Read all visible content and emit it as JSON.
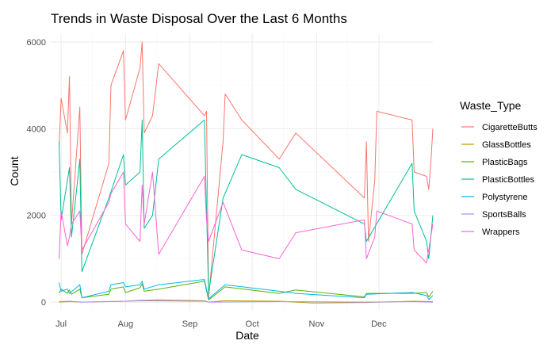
{
  "chart_data": {
    "type": "line",
    "title": "Trends in Waste Disposal Over the Last 6 Months",
    "xlabel": "Date",
    "ylabel": "Count",
    "xlim": [
      "2024-06-26",
      "2024-12-27"
    ],
    "ylim": [
      -200,
      6200
    ],
    "x_ticks": [
      {
        "label": "Jul",
        "date": "2024-07-01"
      },
      {
        "label": "Aug",
        "date": "2024-08-01"
      },
      {
        "label": "Sep",
        "date": "2024-09-01"
      },
      {
        "label": "Oct",
        "date": "2024-10-01"
      },
      {
        "label": "Nov",
        "date": "2024-11-01"
      },
      {
        "label": "Dec",
        "date": "2024-12-01"
      }
    ],
    "y_ticks": [
      0,
      2000,
      4000,
      6000
    ],
    "grid": true,
    "legend": {
      "title": "Waste_Type",
      "position": "right"
    },
    "series": [
      {
        "name": "CigaretteButts",
        "color": "#F8766D",
        "points": [
          [
            "2024-06-30",
            3600
          ],
          [
            "2024-07-01",
            4700
          ],
          [
            "2024-07-04",
            3900
          ],
          [
            "2024-07-05",
            5200
          ],
          [
            "2024-07-06",
            1800
          ],
          [
            "2024-07-10",
            4500
          ],
          [
            "2024-07-11",
            1100
          ],
          [
            "2024-07-24",
            3200
          ],
          [
            "2024-07-25",
            5000
          ],
          [
            "2024-07-31",
            5800
          ],
          [
            "2024-08-01",
            4200
          ],
          [
            "2024-08-08",
            5400
          ],
          [
            "2024-08-09",
            6000
          ],
          [
            "2024-08-10",
            3900
          ],
          [
            "2024-08-14",
            4300
          ],
          [
            "2024-08-17",
            5500
          ],
          [
            "2024-09-08",
            4300
          ],
          [
            "2024-09-09",
            4400
          ],
          [
            "2024-09-10",
            100
          ],
          [
            "2024-09-17",
            3700
          ],
          [
            "2024-09-18",
            4800
          ],
          [
            "2024-09-26",
            4200
          ],
          [
            "2024-10-14",
            3300
          ],
          [
            "2024-10-22",
            3900
          ],
          [
            "2024-11-24",
            2400
          ],
          [
            "2024-11-25",
            3700
          ],
          [
            "2024-11-26",
            1400
          ],
          [
            "2024-11-29",
            2800
          ],
          [
            "2024-11-30",
            4400
          ],
          [
            "2024-12-17",
            4200
          ],
          [
            "2024-12-18",
            3000
          ],
          [
            "2024-12-24",
            2900
          ],
          [
            "2024-12-25",
            2600
          ],
          [
            "2024-12-26",
            3200
          ],
          [
            "2024-12-27",
            4000
          ]
        ]
      },
      {
        "name": "GlassBottles",
        "color": "#C49A00",
        "points": [
          [
            "2024-06-30",
            0
          ],
          [
            "2024-07-05",
            10
          ],
          [
            "2024-07-11",
            0
          ],
          [
            "2024-08-01",
            20
          ],
          [
            "2024-08-08",
            40
          ],
          [
            "2024-08-17",
            50
          ],
          [
            "2024-09-08",
            30
          ],
          [
            "2024-09-10",
            0
          ],
          [
            "2024-09-18",
            30
          ],
          [
            "2024-10-14",
            20
          ],
          [
            "2024-10-30",
            -20
          ],
          [
            "2024-11-24",
            -10
          ],
          [
            "2024-12-18",
            20
          ],
          [
            "2024-12-27",
            10
          ]
        ]
      },
      {
        "name": "PlasticBags",
        "color": "#53B400",
        "points": [
          [
            "2024-06-30",
            200
          ],
          [
            "2024-07-01",
            300
          ],
          [
            "2024-07-04",
            200
          ],
          [
            "2024-07-05",
            280
          ],
          [
            "2024-07-06",
            180
          ],
          [
            "2024-07-10",
            300
          ],
          [
            "2024-07-11",
            100
          ],
          [
            "2024-07-24",
            180
          ],
          [
            "2024-07-25",
            300
          ],
          [
            "2024-07-31",
            350
          ],
          [
            "2024-08-01",
            220
          ],
          [
            "2024-08-08",
            330
          ],
          [
            "2024-08-09",
            420
          ],
          [
            "2024-08-10",
            250
          ],
          [
            "2024-08-17",
            300
          ],
          [
            "2024-09-08",
            480
          ],
          [
            "2024-09-10",
            50
          ],
          [
            "2024-09-18",
            350
          ],
          [
            "2024-10-14",
            200
          ],
          [
            "2024-10-22",
            280
          ],
          [
            "2024-11-24",
            120
          ],
          [
            "2024-11-25",
            200
          ],
          [
            "2024-12-17",
            200
          ],
          [
            "2024-12-24",
            220
          ],
          [
            "2024-12-25",
            120
          ],
          [
            "2024-12-27",
            250
          ]
        ]
      },
      {
        "name": "PlasticBottles",
        "color": "#00C094",
        "points": [
          [
            "2024-06-30",
            3700
          ],
          [
            "2024-07-01",
            1900
          ],
          [
            "2024-07-05",
            3100
          ],
          [
            "2024-07-06",
            1500
          ],
          [
            "2024-07-10",
            3300
          ],
          [
            "2024-07-11",
            700
          ],
          [
            "2024-07-24",
            2400
          ],
          [
            "2024-07-31",
            3400
          ],
          [
            "2024-08-01",
            2700
          ],
          [
            "2024-08-08",
            3000
          ],
          [
            "2024-08-09",
            4200
          ],
          [
            "2024-08-10",
            1700
          ],
          [
            "2024-08-14",
            2000
          ],
          [
            "2024-08-17",
            3300
          ],
          [
            "2024-09-08",
            4200
          ],
          [
            "2024-09-10",
            200
          ],
          [
            "2024-09-17",
            2400
          ],
          [
            "2024-09-26",
            3400
          ],
          [
            "2024-10-14",
            3100
          ],
          [
            "2024-10-22",
            2600
          ],
          [
            "2024-11-24",
            1800
          ],
          [
            "2024-11-25",
            1400
          ],
          [
            "2024-12-17",
            3200
          ],
          [
            "2024-12-18",
            2100
          ],
          [
            "2024-12-24",
            1400
          ],
          [
            "2024-12-25",
            1000
          ],
          [
            "2024-12-27",
            2000
          ]
        ]
      },
      {
        "name": "Polystyrene",
        "color": "#00B6EB",
        "points": [
          [
            "2024-06-30",
            450
          ],
          [
            "2024-07-01",
            250
          ],
          [
            "2024-07-04",
            300
          ],
          [
            "2024-07-05",
            200
          ],
          [
            "2024-07-10",
            400
          ],
          [
            "2024-07-11",
            100
          ],
          [
            "2024-07-24",
            250
          ],
          [
            "2024-07-25",
            400
          ],
          [
            "2024-07-31",
            450
          ],
          [
            "2024-08-01",
            350
          ],
          [
            "2024-08-08",
            400
          ],
          [
            "2024-08-09",
            480
          ],
          [
            "2024-08-10",
            300
          ],
          [
            "2024-08-17",
            400
          ],
          [
            "2024-09-08",
            520
          ],
          [
            "2024-09-10",
            80
          ],
          [
            "2024-09-18",
            400
          ],
          [
            "2024-10-14",
            250
          ],
          [
            "2024-10-22",
            200
          ],
          [
            "2024-11-24",
            100
          ],
          [
            "2024-11-25",
            180
          ],
          [
            "2024-12-17",
            220
          ],
          [
            "2024-12-24",
            150
          ],
          [
            "2024-12-25",
            60
          ],
          [
            "2024-12-27",
            150
          ]
        ]
      },
      {
        "name": "SportsBalls",
        "color": "#A58AFF",
        "points": [
          [
            "2024-06-30",
            10
          ],
          [
            "2024-07-05",
            20
          ],
          [
            "2024-07-11",
            0
          ],
          [
            "2024-08-01",
            20
          ],
          [
            "2024-08-09",
            30
          ],
          [
            "2024-09-08",
            20
          ],
          [
            "2024-09-10",
            0
          ],
          [
            "2024-10-14",
            10
          ],
          [
            "2024-11-24",
            0
          ],
          [
            "2024-12-17",
            10
          ],
          [
            "2024-12-27",
            0
          ]
        ]
      },
      {
        "name": "Wrappers",
        "color": "#FB61D7",
        "points": [
          [
            "2024-06-30",
            1000
          ],
          [
            "2024-07-01",
            2100
          ],
          [
            "2024-07-04",
            1300
          ],
          [
            "2024-07-05",
            1500
          ],
          [
            "2024-07-06",
            1800
          ],
          [
            "2024-07-10",
            2100
          ],
          [
            "2024-07-11",
            1200
          ],
          [
            "2024-07-24",
            2300
          ],
          [
            "2024-07-25",
            2500
          ],
          [
            "2024-07-31",
            3000
          ],
          [
            "2024-08-01",
            1800
          ],
          [
            "2024-08-08",
            1400
          ],
          [
            "2024-08-09",
            2700
          ],
          [
            "2024-08-10",
            1800
          ],
          [
            "2024-08-14",
            3000
          ],
          [
            "2024-08-17",
            1100
          ],
          [
            "2024-09-08",
            2900
          ],
          [
            "2024-09-09",
            1900
          ],
          [
            "2024-09-10",
            1400
          ],
          [
            "2024-09-17",
            2300
          ],
          [
            "2024-09-26",
            1200
          ],
          [
            "2024-10-14",
            1000
          ],
          [
            "2024-10-22",
            1600
          ],
          [
            "2024-11-24",
            1900
          ],
          [
            "2024-11-25",
            1000
          ],
          [
            "2024-11-29",
            1500
          ],
          [
            "2024-11-30",
            2100
          ],
          [
            "2024-12-17",
            1800
          ],
          [
            "2024-12-18",
            1200
          ],
          [
            "2024-12-24",
            900
          ],
          [
            "2024-12-27",
            1800
          ]
        ]
      }
    ]
  }
}
